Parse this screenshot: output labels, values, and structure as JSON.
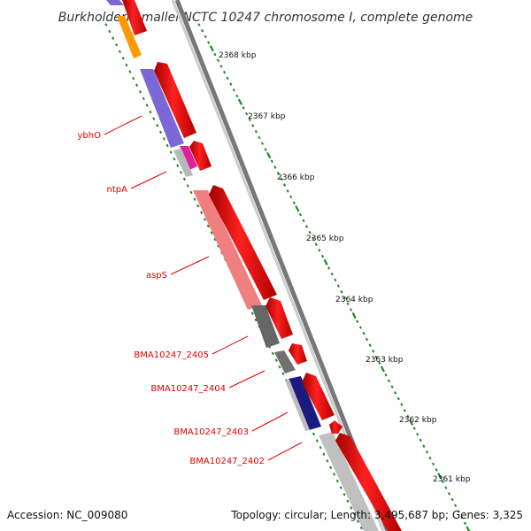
{
  "title": "Burkholderia mallei NCTC 10247 chromosome I, complete genome",
  "footer": {
    "accession": "Accession: NC_009080",
    "summary": "Topology: circular; Length: 3,495,687 bp; Genes: 3,325"
  },
  "ruler": {
    "ticks": [
      {
        "kbp": 2368,
        "label": "2368 kbp"
      },
      {
        "kbp": 2367,
        "label": "2367 kbp"
      },
      {
        "kbp": 2366,
        "label": "2366 kbp"
      },
      {
        "kbp": 2365,
        "label": "2365 kbp"
      },
      {
        "kbp": 2364,
        "label": "2364 kbp"
      },
      {
        "kbp": 2363,
        "label": "2363 kbp"
      },
      {
        "kbp": 2362,
        "label": "2362 kbp"
      },
      {
        "kbp": 2361,
        "label": "2361 kbp"
      }
    ]
  },
  "gene_labels": [
    {
      "name": "ybhO"
    },
    {
      "name": "ntpA"
    },
    {
      "name": "aspS"
    },
    {
      "name": "BMA10247_2405"
    },
    {
      "name": "BMA10247_2404"
    },
    {
      "name": "BMA10247_2403"
    },
    {
      "name": "BMA10247_2402"
    }
  ],
  "colors": {
    "backbone": "#8c8c8c",
    "ruler_ticks": "#1f8a1f",
    "label_red": "#e00000",
    "cds_arrow": "#ff0000",
    "orange": "#ff9900",
    "purple": "#7b68d6",
    "magenta": "#e0209a",
    "salmon": "#f08080",
    "dark_gray": "#666666",
    "navy": "#1a1a80",
    "light_gray": "#c0c0c0"
  }
}
